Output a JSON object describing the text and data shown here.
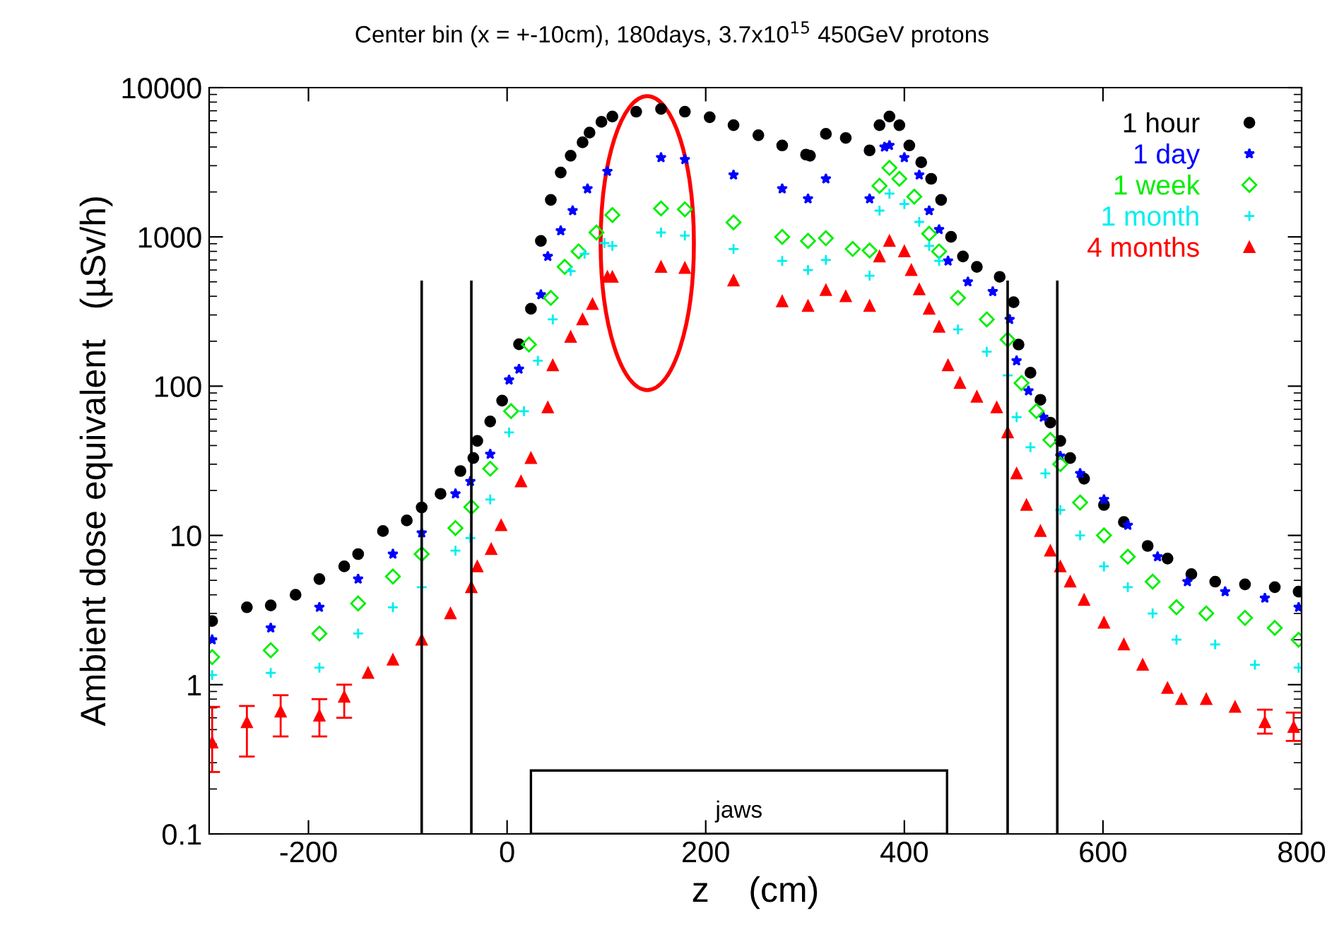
{
  "chart_data": {
    "type": "scatter",
    "title": "Center bin (x = +-10cm), 180days, 3.7x10$^{15}$ 450GeV protons",
    "xlabel": "z    (cm)",
    "ylabel": "Ambient dose equivalent   (µSv/h)",
    "xlim": [
      -300,
      800
    ],
    "xticks": [
      -200,
      0,
      200,
      400,
      600,
      800
    ],
    "ylim": [
      0.1,
      10000
    ],
    "yticks": [
      0.1,
      1,
      10,
      100,
      1000,
      10000
    ],
    "log": "y",
    "grid": false,
    "legend": "top right",
    "bands": [
      {
        "axis": "x",
        "from": 24,
        "to": 443,
        "label": "jaws",
        "color": "#ffffff"
      }
    ],
    "series": [
      {
        "name": "1 hour",
        "marker": "circle",
        "color": "#000000",
        "x": [
          -297,
          -262,
          -238,
          -213,
          -189,
          -164,
          -150,
          -125,
          -101,
          -86,
          -67,
          -47,
          -34,
          -30,
          -17,
          -5,
          12,
          24,
          34,
          44,
          54,
          64,
          76,
          83,
          95,
          106,
          130,
          155,
          179,
          204,
          228,
          253,
          277,
          301,
          305,
          321,
          341,
          365,
          375,
          385,
          395,
          405,
          417,
          427,
          437,
          447,
          459,
          473,
          496,
          510,
          515,
          527,
          537,
          547,
          557,
          567,
          581,
          601,
          621,
          645,
          665,
          689,
          713,
          743,
          773,
          797
        ],
        "values": [
          2.67,
          3.3,
          3.4,
          4.0,
          5.1,
          6.2,
          7.5,
          10.7,
          12.6,
          15.4,
          19,
          27,
          33,
          43,
          58,
          80,
          191,
          330,
          940,
          1770,
          2700,
          3500,
          4300,
          5000,
          5900,
          6400,
          6900,
          7200,
          6900,
          6340,
          5600,
          4800,
          4100,
          3560,
          3500,
          4900,
          4600,
          3800,
          5600,
          6400,
          5600,
          4100,
          3160,
          2450,
          1770,
          1000,
          740,
          630,
          540,
          365,
          190,
          123,
          81,
          57,
          43,
          33,
          24,
          16,
          12.3,
          8.5,
          7,
          5.5,
          4.9,
          4.7,
          4.5,
          4.2
        ]
      },
      {
        "name": "1 day",
        "marker": "star",
        "color": "#0000ff",
        "x": [
          -297,
          -238,
          -189,
          -150,
          -115,
          -86,
          -52,
          -37,
          -17,
          2,
          12,
          34,
          41,
          54,
          66,
          81,
          101,
          155,
          179,
          228,
          277,
          303,
          321,
          365,
          380,
          385,
          400,
          415,
          425,
          435,
          444,
          464,
          489,
          506,
          513,
          525,
          540,
          557,
          577,
          601,
          625,
          655,
          685,
          723,
          763,
          797
        ],
        "values": [
          2.0,
          2.4,
          3.3,
          5.1,
          7.5,
          10.4,
          19,
          23,
          35,
          110,
          130,
          410,
          740,
          1100,
          1500,
          2100,
          2750,
          3400,
          3300,
          2600,
          2100,
          1800,
          2450,
          1800,
          4000,
          4100,
          3400,
          2600,
          1500,
          1120,
          690,
          500,
          430,
          280,
          148,
          93,
          62,
          34,
          26,
          17.4,
          11.7,
          7.2,
          4.9,
          4.2,
          3.8,
          3.3
        ]
      },
      {
        "name": "1 week",
        "marker": "diamond",
        "color": "#00ee00",
        "x": [
          -297,
          -238,
          -189,
          -150,
          -115,
          -86,
          -52,
          -36,
          -17,
          4,
          22,
          44,
          58,
          72,
          90,
          106,
          155,
          179,
          228,
          277,
          303,
          321,
          348,
          365,
          375,
          385,
          395,
          410,
          425,
          435,
          454,
          483,
          504,
          518,
          533,
          547,
          557,
          577,
          601,
          625,
          650,
          674,
          704,
          743,
          773,
          797
        ],
        "values": [
          1.53,
          1.7,
          2.2,
          3.5,
          5.3,
          7.5,
          11.2,
          15.5,
          28,
          68,
          190,
          390,
          630,
          800,
          1070,
          1400,
          1550,
          1530,
          1250,
          1000,
          940,
          980,
          830,
          810,
          2200,
          2900,
          2450,
          1860,
          1050,
          800,
          390,
          280,
          205,
          105,
          68,
          43.6,
          30,
          16.6,
          10,
          7.2,
          4.9,
          3.3,
          3.0,
          2.8,
          2.4,
          2.0
        ]
      },
      {
        "name": "1 month",
        "marker": "cross",
        "color": "#00eeee",
        "x": [
          -297,
          -238,
          -189,
          -150,
          -115,
          -86,
          -52,
          -37,
          -17,
          2,
          17,
          31,
          46,
          64,
          78,
          98,
          106,
          155,
          179,
          228,
          277,
          303,
          321,
          365,
          375,
          385,
          400,
          415,
          425,
          435,
          454,
          483,
          504,
          513,
          527,
          542,
          557,
          577,
          601,
          625,
          650,
          674,
          713,
          753,
          797
        ],
        "values": [
          1.16,
          1.2,
          1.3,
          2.2,
          3.3,
          4.5,
          7.9,
          9.6,
          17.4,
          49,
          68,
          148,
          280,
          590,
          770,
          910,
          870,
          1070,
          1020,
          830,
          690,
          600,
          700,
          550,
          1500,
          1950,
          1660,
          1260,
          870,
          690,
          240,
          170,
          118,
          62,
          39,
          26,
          14.8,
          10,
          6.2,
          4.5,
          3.0,
          2.0,
          1.86,
          1.36,
          1.3
        ]
      },
      {
        "name": "4 months",
        "marker": "triangle",
        "color": "#ff0000",
        "x": [
          -297,
          -262,
          -228,
          -189,
          -164,
          -140,
          -115,
          -86,
          -57,
          -36,
          -30,
          -16,
          -6,
          14,
          24,
          41,
          46,
          64,
          76,
          86,
          101,
          106,
          155,
          179,
          228,
          277,
          303,
          321,
          341,
          365,
          375,
          385,
          400,
          407,
          415,
          425,
          435,
          444,
          456,
          473,
          493,
          504,
          513,
          523,
          537,
          547,
          557,
          567,
          581,
          601,
          621,
          640,
          665,
          679,
          704,
          733,
          763,
          792
        ],
        "values": [
          0.41,
          0.56,
          0.66,
          0.62,
          0.83,
          1.2,
          1.47,
          2.0,
          3.0,
          4.5,
          6.2,
          8.1,
          11.7,
          23,
          33,
          72,
          138,
          214,
          280,
          355,
          540,
          540,
          630,
          620,
          510,
          370,
          345,
          440,
          400,
          345,
          740,
          940,
          800,
          600,
          445,
          330,
          250,
          138,
          105,
          85,
          72,
          49,
          26,
          16,
          10.7,
          7.9,
          6.2,
          4.9,
          3.7,
          2.6,
          1.86,
          1.36,
          0.95,
          0.8,
          0.8,
          0.71,
          0.56,
          0.52
        ],
        "errors": [
          [
            0.26,
            0.71
          ],
          [
            0.33,
            0.72
          ],
          [
            0.45,
            0.85
          ],
          [
            0.45,
            0.8
          ],
          [
            0.6,
            1.0
          ],
          null,
          null,
          null,
          null,
          null,
          null,
          null,
          null,
          null,
          null,
          null,
          null,
          null,
          null,
          null,
          null,
          null,
          null,
          null,
          null,
          null,
          null,
          null,
          null,
          null,
          null,
          null,
          null,
          null,
          null,
          null,
          null,
          null,
          null,
          null,
          null,
          null,
          null,
          null,
          null,
          null,
          null,
          null,
          null,
          null,
          null,
          null,
          null,
          null,
          null,
          null,
          [
            0.47,
            0.68
          ],
          [
            0.42,
            0.65
          ]
        ]
      },
      {
        "type": "line",
        "color": "#000000",
        "x": [
          -86,
          -86
        ],
        "values": [
          0.1,
          500
        ]
      },
      {
        "type": "line",
        "color": "#000000",
        "x": [
          -36,
          -36
        ],
        "values": [
          0.1,
          500
        ]
      },
      {
        "type": "line",
        "color": "#000000",
        "x": [
          504,
          504
        ],
        "values": [
          0.1,
          500
        ]
      },
      {
        "type": "line",
        "color": "#000000",
        "x": [
          554,
          554
        ],
        "values": [
          0.1,
          500
        ]
      }
    ]
  }
}
